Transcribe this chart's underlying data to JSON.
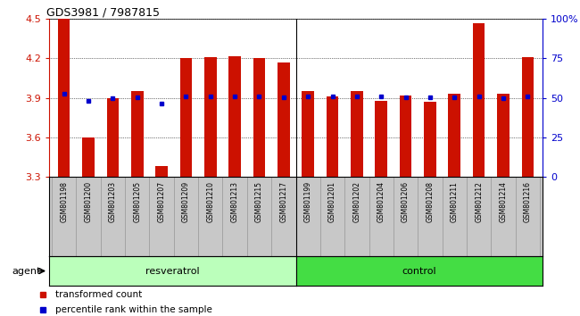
{
  "title": "GDS3981 / 7987815",
  "samples": [
    "GSM801198",
    "GSM801200",
    "GSM801203",
    "GSM801205",
    "GSM801207",
    "GSM801209",
    "GSM801210",
    "GSM801213",
    "GSM801215",
    "GSM801217",
    "GSM801199",
    "GSM801201",
    "GSM801202",
    "GSM801204",
    "GSM801206",
    "GSM801208",
    "GSM801211",
    "GSM801212",
    "GSM801214",
    "GSM801216"
  ],
  "bar_values": [
    4.5,
    3.6,
    3.9,
    3.95,
    3.38,
    4.2,
    4.21,
    4.22,
    4.2,
    4.17,
    3.95,
    3.91,
    3.95,
    3.88,
    3.92,
    3.87,
    3.93,
    4.47,
    3.93,
    4.21
  ],
  "dot_values": [
    3.93,
    3.88,
    3.9,
    3.905,
    3.855,
    3.915,
    3.915,
    3.915,
    3.915,
    3.905,
    3.91,
    3.91,
    3.91,
    3.91,
    3.905,
    3.905,
    3.905,
    3.915,
    3.9,
    3.91
  ],
  "ylim": [
    3.3,
    4.5
  ],
  "yticks": [
    3.3,
    3.6,
    3.9,
    4.2,
    4.5
  ],
  "ytick_labels": [
    "3.3",
    "3.6",
    "3.9",
    "4.2",
    "4.5"
  ],
  "y2ticks_pct": [
    0,
    25,
    50,
    75,
    100
  ],
  "y2tick_labels": [
    "0",
    "25",
    "50",
    "75",
    "100%"
  ],
  "bar_color": "#cc1100",
  "dot_color": "#0000cc",
  "n_resveratrol": 10,
  "resveratrol_label": "resveratrol",
  "control_label": "control",
  "agent_label": "agent",
  "legend_bar_label": "transformed count",
  "legend_dot_label": "percentile rank within the sample",
  "bg_color": "#ffffff",
  "xtick_bg": "#c8c8c8",
  "resveratrol_color": "#bbffbb",
  "control_color": "#44dd44",
  "bar_width": 0.5
}
